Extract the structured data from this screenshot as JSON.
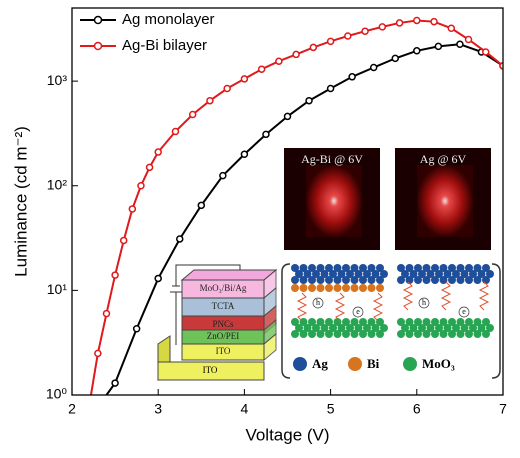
{
  "chart_data": {
    "type": "line",
    "x_label": "Voltage (V)",
    "y_label": "Luminance (cd m⁻²)",
    "log_y": true,
    "xlim": [
      2,
      7
    ],
    "xticks": [
      2,
      3,
      4,
      5,
      6,
      7
    ],
    "ylim": [
      1,
      5000
    ],
    "yticks": [
      {
        "value": 1,
        "label": "10⁰"
      },
      {
        "value": 10,
        "label": "10¹"
      },
      {
        "value": 100,
        "label": "10²"
      },
      {
        "value": 1000,
        "label": "10³"
      }
    ],
    "legend": "upper left",
    "series": [
      {
        "name": "Ag monolayer",
        "color": "#000000",
        "x": [
          2.4,
          2.5,
          2.75,
          3.0,
          3.25,
          3.5,
          3.75,
          4.0,
          4.25,
          4.5,
          4.75,
          5.0,
          5.25,
          5.5,
          5.75,
          6.0,
          6.25,
          6.5,
          6.75,
          7.0
        ],
        "values": [
          1.0,
          1.3,
          4.3,
          13,
          31,
          65,
          125,
          200,
          310,
          460,
          650,
          850,
          1100,
          1350,
          1650,
          1950,
          2150,
          2250,
          1900,
          1400
        ]
      },
      {
        "name": "Ag-Bi bilayer",
        "color": "#e0191b",
        "x": [
          2.22,
          2.3,
          2.4,
          2.5,
          2.6,
          2.7,
          2.8,
          2.9,
          3.0,
          3.2,
          3.4,
          3.6,
          3.8,
          4.0,
          4.2,
          4.4,
          4.6,
          4.8,
          5.0,
          5.2,
          5.4,
          5.6,
          5.8,
          6.0,
          6.2,
          6.4,
          6.6,
          6.8,
          7.0
        ],
        "values": [
          1.0,
          2.5,
          6,
          14,
          30,
          60,
          100,
          150,
          210,
          330,
          480,
          650,
          850,
          1050,
          1300,
          1550,
          1800,
          2100,
          2400,
          2700,
          3000,
          3300,
          3600,
          3800,
          3700,
          3200,
          2500,
          1900,
          1400
        ]
      }
    ],
    "annotations": [
      "Ag-Bi @ 6V",
      "Ag @ 6V",
      "MoO₃/Bi/Ag",
      "TCTA",
      "PNCs",
      "ZnO/PEI",
      "ITO",
      "Ag",
      "Bi",
      "MoO₃",
      "h",
      "e"
    ]
  }
}
